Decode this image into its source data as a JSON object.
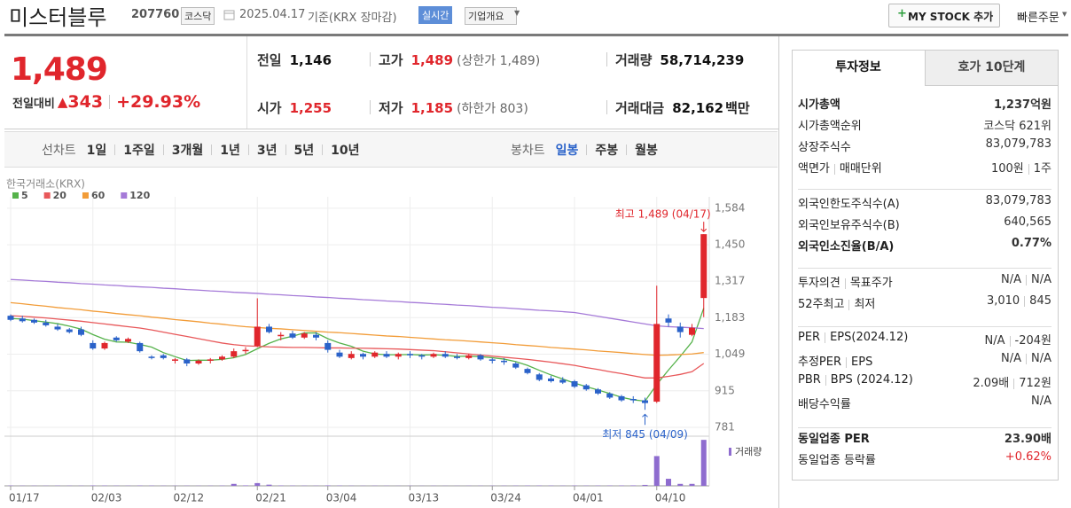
{
  "header": {
    "name": "미스터블루",
    "code": "207760",
    "market": "코스닥",
    "date": "2025.04.17",
    "basis": "기준(KRX 장마감)",
    "realtime": "실시간",
    "company": "기업개요",
    "mystock": "MY STOCK 추가",
    "quick": "빠른주문"
  },
  "quote": {
    "price": "1,489",
    "change_label": "전일대비",
    "change": "343",
    "change_pct": "+29.93%",
    "color": "#e0262c",
    "items": [
      {
        "label": "전일",
        "value": "1,146"
      },
      {
        "label": "고가",
        "value": "1,489",
        "extra": "(상한가 1,489)",
        "color": "#e0262c"
      },
      {
        "label": "거래량",
        "value": "58,714,239"
      },
      {
        "label": "시가",
        "value": "1,255",
        "color": "#e0262c"
      },
      {
        "label": "저가",
        "value": "1,185",
        "extra": "(하한가 803)",
        "color": "#e0262c"
      },
      {
        "label": "거래대금",
        "value": "82,162",
        "unit": "백만"
      }
    ]
  },
  "periods": {
    "line_label": "선차트",
    "line": [
      "1일",
      "1주일",
      "3개월",
      "1년",
      "3년",
      "5년",
      "10년"
    ],
    "candle_label": "봉차트",
    "candle": [
      "일봉",
      "주봉",
      "월봉"
    ],
    "candle_active": 0
  },
  "chart_data": {
    "type": "candlestick",
    "source": "한국거래소(KRX)",
    "categories": [
      "01/17",
      null,
      null,
      null,
      null,
      null,
      null,
      "02/03",
      null,
      null,
      null,
      null,
      null,
      null,
      "02/12",
      null,
      null,
      null,
      null,
      null,
      null,
      "02/21",
      null,
      null,
      null,
      null,
      null,
      "03/04",
      null,
      null,
      null,
      null,
      null,
      null,
      "03/13",
      null,
      null,
      null,
      null,
      null,
      null,
      "03/24",
      null,
      null,
      null,
      null,
      null,
      null,
      "04/01",
      null,
      null,
      null,
      null,
      null,
      null,
      "04/10",
      null,
      null,
      null,
      null
    ],
    "open": [
      1190,
      1180,
      1175,
      1165,
      1150,
      1140,
      1140,
      1090,
      1070,
      1110,
      1095,
      1090,
      1040,
      1045,
      1025,
      1030,
      1015,
      1025,
      1030,
      1040,
      1060,
      1080,
      1150,
      1115,
      1125,
      1110,
      1120,
      1090,
      1055,
      1035,
      1050,
      1040,
      1050,
      1040,
      1050,
      1045,
      1040,
      1050,
      1040,
      1035,
      1045,
      1030,
      1025,
      1015,
      995,
      975,
      960,
      955,
      950,
      935,
      920,
      905,
      895,
      885,
      880,
      875,
      1180,
      1150,
      1120,
      1255
    ],
    "high": [
      1195,
      1190,
      1180,
      1175,
      1160,
      1145,
      1150,
      1100,
      1095,
      1115,
      1110,
      1095,
      1045,
      1050,
      1035,
      1035,
      1030,
      1035,
      1045,
      1070,
      1075,
      1254,
      1160,
      1130,
      1135,
      1130,
      1130,
      1100,
      1065,
      1060,
      1055,
      1060,
      1060,
      1055,
      1060,
      1050,
      1055,
      1060,
      1050,
      1050,
      1050,
      1035,
      1035,
      1020,
      1000,
      980,
      970,
      965,
      955,
      940,
      925,
      910,
      900,
      895,
      890,
      1300,
      1195,
      1165,
      1160,
      1489
    ],
    "low": [
      1170,
      1165,
      1160,
      1150,
      1135,
      1125,
      1115,
      1065,
      1065,
      1095,
      1090,
      1055,
      1030,
      1030,
      1015,
      1005,
      1010,
      1015,
      1025,
      1035,
      1050,
      1075,
      1125,
      1100,
      1105,
      1105,
      1100,
      1055,
      1035,
      1030,
      1030,
      1035,
      1035,
      1030,
      1035,
      1030,
      1035,
      1035,
      1030,
      1030,
      1025,
      1015,
      1010,
      995,
      975,
      950,
      945,
      940,
      925,
      915,
      900,
      885,
      875,
      870,
      845,
      870,
      1150,
      1110,
      1115,
      1185
    ],
    "close": [
      1175,
      1170,
      1165,
      1155,
      1140,
      1130,
      1120,
      1070,
      1090,
      1100,
      1105,
      1060,
      1035,
      1035,
      1030,
      1015,
      1025,
      1030,
      1040,
      1060,
      1065,
      1150,
      1130,
      1120,
      1110,
      1125,
      1110,
      1065,
      1040,
      1050,
      1040,
      1055,
      1040,
      1050,
      1045,
      1040,
      1050,
      1040,
      1035,
      1045,
      1030,
      1025,
      1020,
      1000,
      980,
      955,
      950,
      945,
      930,
      920,
      905,
      890,
      880,
      880,
      870,
      1160,
      1165,
      1130,
      1146,
      1489
    ],
    "up_color": "#e0262c",
    "down_color": "#2a62c9",
    "series": [
      {
        "name": "5",
        "color": "#55b24a",
        "values": [
          1180,
          1178,
          1172,
          1167,
          1161,
          1152,
          1141,
          1121,
          1104,
          1094,
          1093,
          1085,
          1075,
          1055,
          1040,
          1026,
          1027,
          1027,
          1030,
          1036,
          1048,
          1069,
          1089,
          1105,
          1115,
          1127,
          1127,
          1106,
          1090,
          1078,
          1060,
          1050,
          1047,
          1047,
          1048,
          1046,
          1047,
          1045,
          1041,
          1042,
          1040,
          1036,
          1031,
          1022,
          1008,
          990,
          973,
          958,
          943,
          930,
          918,
          905,
          891,
          882,
          877,
          938,
          991,
          1041,
          1094,
          1218
        ]
      },
      {
        "name": "20",
        "color": "#e8585a",
        "values": [
          1190,
          1188,
          1185,
          1182,
          1178,
          1174,
          1170,
          1165,
          1160,
          1155,
          1150,
          1145,
          1138,
          1130,
          1122,
          1114,
          1106,
          1098,
          1090,
          1084,
          1080,
          1078,
          1076,
          1075,
          1074,
          1074,
          1073,
          1072,
          1072,
          1071,
          1071,
          1070,
          1069,
          1068,
          1066,
          1064,
          1062,
          1058,
          1054,
          1050,
          1046,
          1042,
          1038,
          1034,
          1030,
          1025,
          1020,
          1014,
          1008,
          1000,
          993,
          985,
          978,
          970,
          962,
          962,
          968,
          975,
          985,
          1015
        ]
      },
      {
        "name": "60",
        "color": "#f29c38",
        "values": [
          1238,
          1234,
          1229,
          1225,
          1220,
          1216,
          1212,
          1207,
          1203,
          1198,
          1194,
          1190,
          1185,
          1181,
          1176,
          1172,
          1168,
          1163,
          1159,
          1154,
          1150,
          1147,
          1144,
          1142,
          1139,
          1136,
          1133,
          1130,
          1128,
          1125,
          1122,
          1119,
          1116,
          1114,
          1111,
          1108,
          1105,
          1102,
          1100,
          1097,
          1094,
          1091,
          1088,
          1084,
          1081,
          1078,
          1074,
          1071,
          1068,
          1065,
          1061,
          1058,
          1055,
          1051,
          1048,
          1045,
          1046,
          1048,
          1050,
          1055
        ]
      },
      {
        "name": "120",
        "color": "#a57ad8",
        "values": [
          1323,
          1321,
          1318,
          1316,
          1313,
          1311,
          1308,
          1306,
          1303,
          1301,
          1298,
          1296,
          1294,
          1291,
          1289,
          1286,
          1284,
          1281,
          1279,
          1276,
          1274,
          1272,
          1269,
          1267,
          1264,
          1262,
          1259,
          1257,
          1254,
          1252,
          1249,
          1247,
          1244,
          1242,
          1239,
          1237,
          1234,
          1232,
          1229,
          1227,
          1224,
          1221,
          1219,
          1216,
          1213,
          1210,
          1208,
          1205,
          1202,
          1195,
          1188,
          1181,
          1174,
          1167,
          1160,
          1153,
          1150,
          1148,
          1146,
          1143
        ]
      }
    ],
    "ylim": [
      755,
      1600
    ],
    "yticks": [
      {
        "value": 1584,
        "label": "1,584"
      },
      {
        "value": 1450,
        "label": "1,450"
      },
      {
        "value": 1317,
        "label": "1,317"
      },
      {
        "value": 1183,
        "label": "1,183"
      },
      {
        "value": 1049,
        "label": "1,049"
      },
      {
        "value": 915,
        "label": "915"
      },
      {
        "value": 781,
        "label": "781"
      }
    ],
    "annotations": [
      {
        "text": "최고 1,489 (04/17)",
        "color": "#e0262c"
      },
      {
        "text": "최저 845 (04/09)",
        "color": "#2a62c9"
      }
    ],
    "volume": {
      "label": "거래량",
      "color": "#8e6ccf",
      "ylim": [
        0,
        60000000
      ],
      "values": [
        400000,
        300000,
        300000,
        250000,
        350000,
        300000,
        300000,
        500000,
        400000,
        350000,
        300000,
        450000,
        400000,
        300000,
        250000,
        300000,
        250000,
        300000,
        400000,
        2500000,
        600000,
        3500000,
        1500000,
        500000,
        400000,
        350000,
        300000,
        600000,
        400000,
        300000,
        250000,
        300000,
        250000,
        200000,
        250000,
        200000,
        250000,
        200000,
        200000,
        250000,
        250000,
        300000,
        300000,
        350000,
        400000,
        450000,
        400000,
        350000,
        400000,
        350000,
        400000,
        450000,
        500000,
        600000,
        1200000,
        38000000,
        9000000,
        2500000,
        2500000,
        58714239
      ]
    }
  },
  "panel": {
    "tabs": [
      "투자정보",
      "호가 10단계"
    ],
    "sections": [
      [
        {
          "label": "시가총액",
          "value": "1,237억원",
          "bold": true
        },
        {
          "label": "시가총액순위",
          "value": "코스닥 621위"
        },
        {
          "label": "상장주식수",
          "value": "83,079,783"
        },
        {
          "label": [
            "액면가",
            "매매단위"
          ],
          "value": [
            "100원",
            "1주"
          ]
        }
      ],
      [
        {
          "label": "외국인한도주식수(A)",
          "value": "83,079,783"
        },
        {
          "label": "외국인보유주식수(B)",
          "value": "640,565"
        },
        {
          "label": "외국인소진율(B/A)",
          "value": "0.77%",
          "bold": true
        }
      ],
      [
        {
          "label": [
            "투자의견",
            "목표주가"
          ],
          "value": [
            "N/A",
            "N/A"
          ]
        },
        {
          "label": [
            "52주최고",
            "최저"
          ],
          "value": [
            "3,010",
            "845"
          ]
        }
      ],
      [
        {
          "label": [
            "PER",
            "EPS(2024.12)"
          ],
          "value": [
            "N/A",
            "-204원"
          ]
        },
        {
          "label": [
            "추정PER",
            "EPS"
          ],
          "value": [
            "N/A",
            "N/A"
          ]
        },
        {
          "label": [
            "PBR",
            "BPS (2024.12)"
          ],
          "value": [
            "2.09배",
            "712원"
          ]
        },
        {
          "label": "배당수익률",
          "value": "N/A"
        }
      ],
      [
        {
          "label": "동일업종 PER",
          "value": "23.90배",
          "bold": true
        },
        {
          "label": "동일업종 등락률",
          "value": "+0.62%",
          "color": "#e0262c"
        }
      ]
    ]
  }
}
